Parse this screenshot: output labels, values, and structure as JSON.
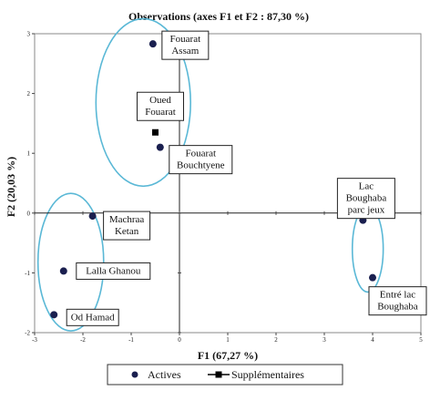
{
  "chart_data": {
    "type": "scatter",
    "title": "Observations (axes F1 et F2 : 87,30 %)",
    "xlabel": "F1 (67,27 %)",
    "ylabel": "F2 (20,03 %)",
    "xlim": [
      -3,
      5
    ],
    "ylim": [
      -2,
      3
    ],
    "xticks": [
      -3,
      -2,
      -1,
      0,
      1,
      2,
      3,
      4,
      5
    ],
    "yticks": [
      -2,
      -1,
      0,
      1,
      2,
      3
    ],
    "grid": false,
    "legend": {
      "placement": "bottom",
      "entries": [
        {
          "name": "Actives",
          "marker": "filled-circle"
        },
        {
          "name": "Supplémentaires",
          "marker": "filled-square-line"
        }
      ]
    },
    "series": [
      {
        "name": "Actives",
        "color": "#1a1f4f",
        "points": [
          {
            "x": -0.55,
            "y": 2.83,
            "label_lines": [
              "Fouarat",
              "Assam"
            ]
          },
          {
            "x": -0.4,
            "y": 1.1,
            "label_lines": [
              "Fouarat",
              "Bouchtyene"
            ]
          },
          {
            "x": -1.8,
            "y": -0.05,
            "label_lines": [
              "Machraa",
              "Ketan"
            ]
          },
          {
            "x": -2.4,
            "y": -0.97,
            "label_lines": [
              "Lalla Ghanou"
            ]
          },
          {
            "x": -2.6,
            "y": -1.7,
            "label_lines": [
              "Od Hamad"
            ]
          },
          {
            "x": 3.8,
            "y": -0.12,
            "label_lines": [
              "Lac",
              "Boughaba",
              "parc jeux"
            ]
          },
          {
            "x": 4.0,
            "y": -1.08,
            "label_lines": [
              "Entré lac",
              "Boughaba"
            ]
          }
        ]
      },
      {
        "name": "Supplémentaires",
        "color": "#000000",
        "points": [
          {
            "x": -0.5,
            "y": 1.35,
            "label_lines": [
              "Oued",
              "Fouarat"
            ]
          }
        ]
      }
    ],
    "cluster_ellipses": [
      {
        "cx": -0.75,
        "cy": 1.85,
        "rx": 0.98,
        "ry": 1.4
      },
      {
        "cx": -2.25,
        "cy": -0.82,
        "rx": 0.68,
        "ry": 1.15
      },
      {
        "cx": 3.9,
        "cy": -0.6,
        "rx": 0.32,
        "ry": 0.72
      }
    ],
    "ellipse_color": "#5ab8d6"
  }
}
